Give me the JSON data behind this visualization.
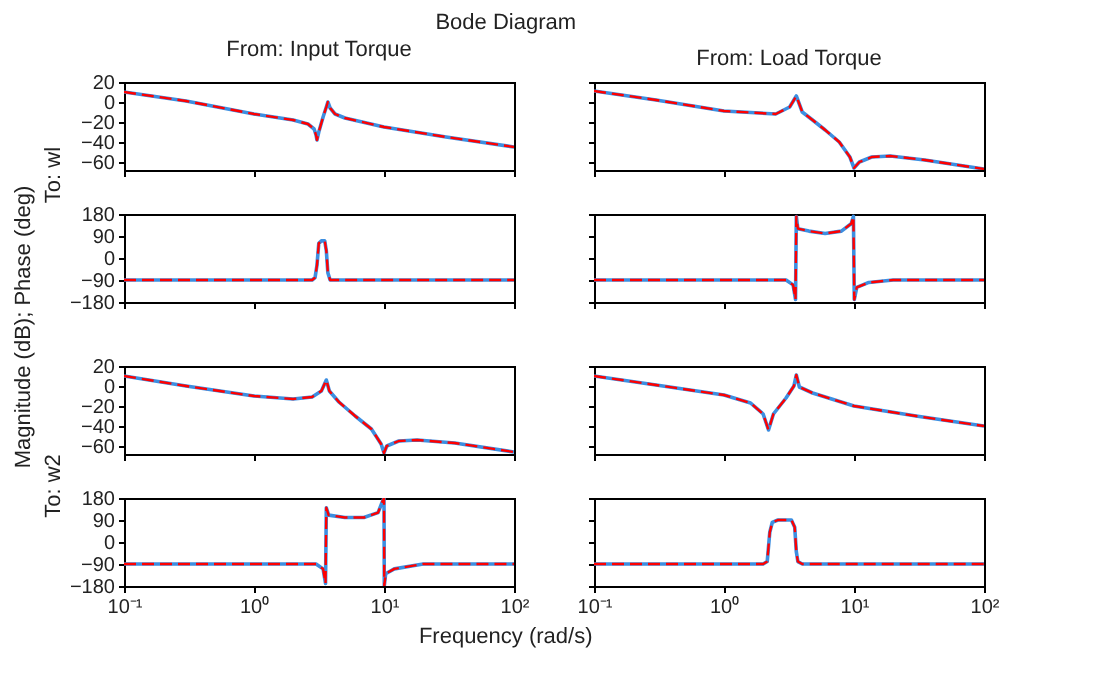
{
  "chart_data": [
    {
      "type": "line",
      "title": "From: Input Torque",
      "ylabel": "To: wl",
      "annotations": [
        "Bode Diagram",
        "Magnitude (dB); Phase (deg)"
      ],
      "log": "x",
      "tick_labels": "y",
      "xlim": [
        0.1,
        100
      ],
      "xticks": [
        {
          "value": 0.1,
          "label": null
        },
        {
          "value": 1,
          "label": null
        },
        {
          "value": 10,
          "label": null
        },
        {
          "value": 100,
          "label": null
        }
      ],
      "ylim": [
        -68,
        20
      ],
      "yticks": [
        20,
        0,
        -20,
        -40,
        -60
      ],
      "x": [
        0.1,
        0.3,
        1,
        2,
        2.6,
        2.9,
        3.0,
        3.05,
        3.15,
        3.4,
        3.6,
        3.7,
        3.85,
        4.2,
        5,
        10,
        30,
        100
      ],
      "series": [
        {
          "color": "#3d8ee0",
          "line_style": "solid",
          "values": [
            10,
            1,
            -12,
            -18,
            -22,
            -27,
            -33,
            -38,
            -30,
            -15,
            -5,
            0,
            -6,
            -12,
            -16,
            -25,
            -35,
            -45
          ]
        },
        {
          "color": "#ff0000",
          "line_style": "dashed",
          "values": [
            10,
            1,
            -12,
            -18,
            -22,
            -27,
            -33,
            -38,
            -30,
            -15,
            -5,
            0,
            -6,
            -12,
            -16,
            -25,
            -35,
            -45
          ]
        }
      ]
    },
    {
      "type": "line",
      "title": "From: Load Torque",
      "log": "x",
      "tick_labels": false,
      "xlim": [
        0.1,
        100
      ],
      "xticks": [
        {
          "value": 0.1,
          "label": null
        },
        {
          "value": 1,
          "label": null
        },
        {
          "value": 10,
          "label": null
        },
        {
          "value": 100,
          "label": null
        }
      ],
      "ylim": [
        -68,
        20
      ],
      "yticks": [
        20,
        0,
        -20,
        -40,
        -60
      ],
      "x": [
        0.1,
        0.3,
        1,
        2.5,
        3.2,
        3.6,
        4.0,
        4.8,
        6,
        7.7,
        9.3,
        10,
        11,
        13.7,
        19,
        35,
        100
      ],
      "series": [
        {
          "color": "#3d8ee0",
          "line_style": "solid",
          "values": [
            11,
            2,
            -9,
            -12,
            -5,
            6,
            -10,
            -18,
            -28,
            -40,
            -55,
            -66,
            -60,
            -55,
            -54,
            -58,
            -67
          ]
        },
        {
          "color": "#ff0000",
          "line_style": "dashed",
          "values": [
            11,
            2,
            -9,
            -12,
            -5,
            6,
            -10,
            -18,
            -28,
            -40,
            -55,
            -66,
            -60,
            -55,
            -54,
            -58,
            -67
          ]
        }
      ]
    },
    {
      "type": "line",
      "log": "x",
      "tick_labels": "y",
      "xlim": [
        0.1,
        100
      ],
      "xticks": [
        {
          "value": 0.1,
          "label": null
        },
        {
          "value": 1,
          "label": null
        },
        {
          "value": 10,
          "label": null
        },
        {
          "value": 100,
          "label": null
        }
      ],
      "ylim": [
        -180,
        180
      ],
      "yticks": [
        180,
        90,
        0,
        -90,
        -180
      ],
      "x": [
        0.1,
        2.8,
        2.95,
        3.05,
        3.15,
        3.3,
        3.5,
        3.6,
        3.7,
        3.85,
        100
      ],
      "series": [
        {
          "color": "#3d8ee0",
          "line_style": "solid",
          "values": [
            -90,
            -90,
            -80,
            -30,
            60,
            70,
            70,
            30,
            -60,
            -90,
            -90
          ]
        },
        {
          "color": "#ff0000",
          "line_style": "dashed",
          "values": [
            -90,
            -90,
            -80,
            -30,
            60,
            70,
            70,
            30,
            -60,
            -90,
            -90
          ]
        }
      ]
    },
    {
      "type": "line",
      "log": "x",
      "tick_labels": false,
      "xlim": [
        0.1,
        100
      ],
      "xticks": [
        {
          "value": 0.1,
          "label": null
        },
        {
          "value": 1,
          "label": null
        },
        {
          "value": 10,
          "label": null
        },
        {
          "value": 100,
          "label": null
        }
      ],
      "ylim": [
        -180,
        180
      ],
      "yticks": [
        180,
        90,
        0,
        -90,
        -180
      ],
      "x": [
        0.1,
        3.0,
        3.4,
        3.55,
        3.6,
        3.7,
        4.5,
        6,
        8,
        9.5,
        9.9,
        10.05,
        10.5,
        13,
        20,
        100
      ],
      "series": [
        {
          "color": "#3d8ee0",
          "line_style": "solid",
          "values": [
            -90,
            -90,
            -110,
            -170,
            170,
            120,
            110,
            100,
            110,
            140,
            170,
            -170,
            -120,
            -100,
            -90,
            -90
          ]
        },
        {
          "color": "#ff0000",
          "line_style": "dashed",
          "values": [
            -90,
            -90,
            -110,
            -170,
            170,
            120,
            110,
            100,
            110,
            140,
            170,
            -170,
            -120,
            -100,
            -90,
            -90
          ]
        }
      ]
    },
    {
      "type": "line",
      "ylabel": "To: w2",
      "log": "x",
      "tick_labels": "y",
      "xlim": [
        0.1,
        100
      ],
      "xticks": [
        {
          "value": 0.1,
          "label": null
        },
        {
          "value": 1,
          "label": null
        },
        {
          "value": 10,
          "label": null
        },
        {
          "value": 100,
          "label": null
        }
      ],
      "ylim": [
        -68,
        20
      ],
      "yticks": [
        20,
        0,
        -20,
        -40,
        -60
      ],
      "x": [
        0.1,
        0.3,
        1,
        2,
        2.8,
        3.3,
        3.6,
        3.8,
        4.5,
        6,
        8,
        9.5,
        10,
        10.5,
        13,
        18,
        35,
        100
      ],
      "series": [
        {
          "color": "#3d8ee0",
          "line_style": "solid",
          "values": [
            10,
            0,
            -10,
            -13,
            -11,
            -5,
            6,
            -5,
            -16,
            -30,
            -43,
            -58,
            -67,
            -60,
            -55,
            -54,
            -57,
            -66
          ]
        },
        {
          "color": "#ff0000",
          "line_style": "dashed",
          "values": [
            10,
            0,
            -10,
            -13,
            -11,
            -5,
            6,
            -5,
            -16,
            -30,
            -43,
            -58,
            -67,
            -60,
            -55,
            -54,
            -57,
            -66
          ]
        }
      ]
    },
    {
      "type": "line",
      "log": "x",
      "tick_labels": false,
      "xlim": [
        0.1,
        100
      ],
      "xticks": [
        {
          "value": 0.1,
          "label": null
        },
        {
          "value": 1,
          "label": null
        },
        {
          "value": 10,
          "label": null
        },
        {
          "value": 100,
          "label": null
        }
      ],
      "ylim": [
        -68,
        20
      ],
      "yticks": [
        20,
        0,
        -20,
        -40,
        -60
      ],
      "x": [
        0.1,
        0.3,
        1,
        1.6,
        2.0,
        2.2,
        2.4,
        3.0,
        3.45,
        3.6,
        3.8,
        4.8,
        10,
        30,
        100
      ],
      "series": [
        {
          "color": "#3d8ee0",
          "line_style": "solid",
          "values": [
            10,
            1,
            -9,
            -17,
            -28,
            -44,
            -28,
            -12,
            0,
            11,
            -1,
            -7,
            -20,
            -30,
            -40
          ]
        },
        {
          "color": "#ff0000",
          "line_style": "dashed",
          "values": [
            10,
            1,
            -9,
            -17,
            -28,
            -44,
            -28,
            -12,
            0,
            11,
            -1,
            -7,
            -20,
            -30,
            -40
          ]
        }
      ]
    },
    {
      "type": "line",
      "xlabel": "Frequency (rad/s)",
      "log": "x",
      "xlim": [
        0.1,
        100
      ],
      "xticks": [
        {
          "value": 0.1,
          "label": "10⁻¹"
        },
        {
          "value": 1,
          "label": "10⁰"
        },
        {
          "value": 10,
          "label": "10¹"
        },
        {
          "value": 100,
          "label": "10²"
        }
      ],
      "ylim": [
        -180,
        180
      ],
      "yticks": [
        180,
        90,
        0,
        -90,
        -180
      ],
      "x": [
        0.1,
        3.0,
        3.4,
        3.55,
        3.6,
        3.75,
        5,
        7,
        9,
        9.8,
        10,
        10.05,
        10.3,
        12,
        20,
        100
      ],
      "series": [
        {
          "color": "#3d8ee0",
          "line_style": "solid",
          "values": [
            -90,
            -90,
            -110,
            -170,
            140,
            110,
            100,
            100,
            120,
            170,
            180,
            -180,
            -130,
            -110,
            -90,
            -90
          ]
        },
        {
          "color": "#ff0000",
          "line_style": "dashed",
          "values": [
            -90,
            -90,
            -110,
            -170,
            140,
            110,
            100,
            100,
            120,
            170,
            180,
            -180,
            -130,
            -110,
            -90,
            -90
          ]
        }
      ]
    },
    {
      "type": "line",
      "log": "x",
      "tick_labels": "x",
      "xlim": [
        0.1,
        100
      ],
      "xticks": [
        {
          "value": 0.1,
          "label": "10⁻¹"
        },
        {
          "value": 1,
          "label": "10⁰"
        },
        {
          "value": 10,
          "label": "10¹"
        },
        {
          "value": 100,
          "label": "10²"
        }
      ],
      "ylim": [
        -180,
        180
      ],
      "yticks": [
        180,
        90,
        0,
        -90,
        -180
      ],
      "x": [
        0.1,
        2.0,
        2.15,
        2.25,
        2.35,
        2.6,
        3.3,
        3.5,
        3.6,
        3.7,
        4,
        100
      ],
      "series": [
        {
          "color": "#3d8ee0",
          "line_style": "solid",
          "values": [
            -90,
            -90,
            -80,
            40,
            80,
            90,
            90,
            60,
            -40,
            -80,
            -90,
            -90
          ]
        },
        {
          "color": "#ff0000",
          "line_style": "dashed",
          "values": [
            -90,
            -90,
            -80,
            40,
            80,
            90,
            90,
            60,
            -40,
            -80,
            -90,
            -90
          ]
        }
      ]
    }
  ]
}
